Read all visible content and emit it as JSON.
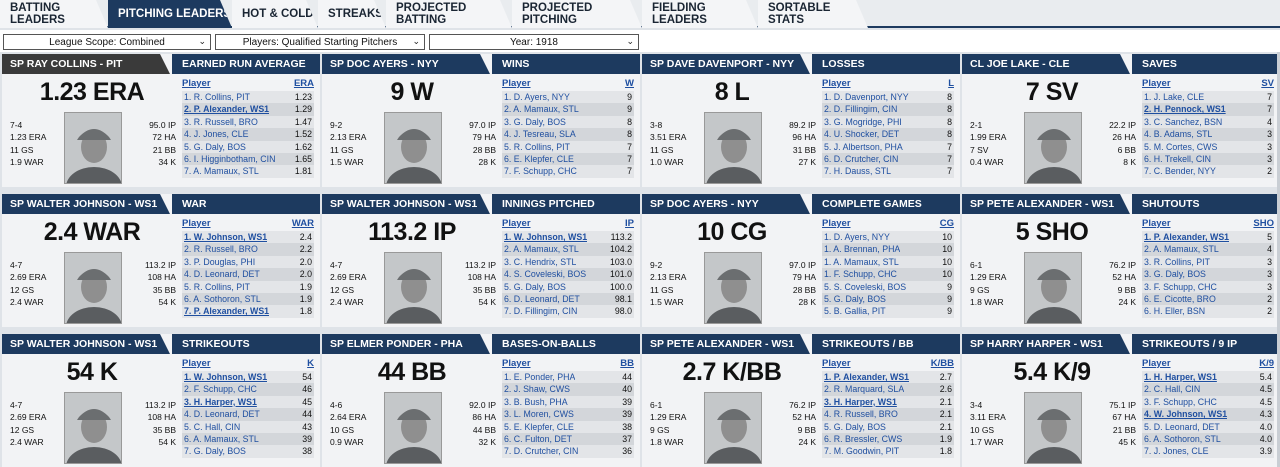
{
  "tabs": [
    "BATTING LEADERS",
    "PITCHING LEADERS",
    "HOT & COLD",
    "STREAKS",
    "PROJECTED BATTING",
    "PROJECTED PITCHING",
    "FIELDING LEADERS",
    "SORTABLE STATS"
  ],
  "active_tab": "PITCHING LEADERS",
  "filters": {
    "league_scope": "League Scope: Combined",
    "players": "Players: Qualified Starting Pitchers",
    "year": "Year: 1918"
  },
  "panels": [
    {
      "player": "SP RAY COLLINS - PIT",
      "category": "EARNED RUN AVERAGE",
      "big": "1.23 ERA",
      "left": [
        "7-4",
        "1.23 ERA",
        "11 GS",
        "1.9 WAR"
      ],
      "right": [
        "95.0 IP",
        "72 HA",
        "21 BB",
        "34 K"
      ],
      "col": "ERA",
      "rows": [
        [
          "1. R. Collins, PIT",
          "1.23"
        ],
        [
          "2. P. Alexander, WS1",
          "1.29"
        ],
        [
          "3. R. Russell, BRO",
          "1.47"
        ],
        [
          "4. J. Jones, CLE",
          "1.52"
        ],
        [
          "5. G. Daly, BOS",
          "1.62"
        ],
        [
          "6. I. Higginbotham, CIN",
          "1.65"
        ],
        [
          "7. A. Mamaux, STL",
          "1.81"
        ]
      ]
    },
    {
      "player": "SP DOC AYERS - NYY",
      "category": "WINS",
      "big": "9 W",
      "left": [
        "9-2",
        "2.13 ERA",
        "11 GS",
        "1.5 WAR"
      ],
      "right": [
        "97.0 IP",
        "79 HA",
        "28 BB",
        "28 K"
      ],
      "col": "W",
      "rows": [
        [
          "1. D. Ayers, NYY",
          "9"
        ],
        [
          "2. A. Mamaux, STL",
          "9"
        ],
        [
          "3. G. Daly, BOS",
          "8"
        ],
        [
          "4. J. Tesreau, SLA",
          "8"
        ],
        [
          "5. R. Collins, PIT",
          "7"
        ],
        [
          "6. E. Klepfer, CLE",
          "7"
        ],
        [
          "7. F. Schupp, CHC",
          "7"
        ]
      ]
    },
    {
      "player": "SP DAVE DAVENPORT - NYY",
      "category": "LOSSES",
      "big": "8 L",
      "left": [
        "3-8",
        "3.51 ERA",
        "11 GS",
        "1.0 WAR"
      ],
      "right": [
        "89.2 IP",
        "96 HA",
        "31 BB",
        "27 K"
      ],
      "col": "L",
      "rows": [
        [
          "1. D. Davenport, NYY",
          "8"
        ],
        [
          "2. D. Fillingim, CIN",
          "8"
        ],
        [
          "3. G. Mogridge, PHI",
          "8"
        ],
        [
          "4. U. Shocker, DET",
          "8"
        ],
        [
          "5. J. Albertson, PHA",
          "7"
        ],
        [
          "6. D. Crutcher, CIN",
          "7"
        ],
        [
          "7. H. Dauss, STL",
          "7"
        ]
      ]
    },
    {
      "player": "CL JOE LAKE - CLE",
      "category": "SAVES",
      "big": "7 SV",
      "left": [
        "2-1",
        "1.99 ERA",
        "7 SV",
        "0.4 WAR"
      ],
      "right": [
        "22.2 IP",
        "26 HA",
        "6 BB",
        "8 K"
      ],
      "col": "SV",
      "rows": [
        [
          "1. J. Lake, CLE",
          "7"
        ],
        [
          "2. H. Pennock, WS1",
          "7"
        ],
        [
          "3. C. Sanchez, BSN",
          "4"
        ],
        [
          "4. B. Adams, STL",
          "3"
        ],
        [
          "5. M. Cortes, CWS",
          "3"
        ],
        [
          "6. H. Trekell, CIN",
          "3"
        ],
        [
          "7. C. Bender, NYY",
          "2"
        ]
      ]
    },
    {
      "player": "SP WALTER JOHNSON - WS1",
      "category": "WAR",
      "big": "2.4 WAR",
      "left": [
        "4-7",
        "2.69 ERA",
        "12 GS",
        "2.4 WAR"
      ],
      "right": [
        "113.2 IP",
        "108 HA",
        "35 BB",
        "54 K"
      ],
      "col": "WAR",
      "rows": [
        [
          "1. W. Johnson, WS1",
          "2.4"
        ],
        [
          "2. R. Russell, BRO",
          "2.2"
        ],
        [
          "3. P. Douglas, PHI",
          "2.0"
        ],
        [
          "4. D. Leonard, DET",
          "2.0"
        ],
        [
          "5. R. Collins, PIT",
          "1.9"
        ],
        [
          "6. A. Sothoron, STL",
          "1.9"
        ],
        [
          "7. P. Alexander, WS1",
          "1.8"
        ]
      ]
    },
    {
      "player": "SP WALTER JOHNSON - WS1",
      "category": "INNINGS PITCHED",
      "big": "113.2 IP",
      "left": [
        "4-7",
        "2.69 ERA",
        "12 GS",
        "2.4 WAR"
      ],
      "right": [
        "113.2 IP",
        "108 HA",
        "35 BB",
        "54 K"
      ],
      "col": "IP",
      "rows": [
        [
          "1. W. Johnson, WS1",
          "113.2"
        ],
        [
          "2. A. Mamaux, STL",
          "104.2"
        ],
        [
          "3. C. Hendrix, STL",
          "103.0"
        ],
        [
          "4. S. Coveleski, BOS",
          "101.0"
        ],
        [
          "5. G. Daly, BOS",
          "100.0"
        ],
        [
          "6. D. Leonard, DET",
          "98.1"
        ],
        [
          "7. D. Fillingim, CIN",
          "98.0"
        ]
      ]
    },
    {
      "player": "SP DOC AYERS - NYY",
      "category": "COMPLETE GAMES",
      "big": "10 CG",
      "left": [
        "9-2",
        "2.13 ERA",
        "11 GS",
        "1.5 WAR"
      ],
      "right": [
        "97.0 IP",
        "79 HA",
        "28 BB",
        "28 K"
      ],
      "col": "CG",
      "rows": [
        [
          "1. D. Ayers, NYY",
          "10"
        ],
        [
          "1. A. Brennan, PHA",
          "10"
        ],
        [
          "1. A. Mamaux, STL",
          "10"
        ],
        [
          "1. F. Schupp, CHC",
          "10"
        ],
        [
          "5. S. Coveleski, BOS",
          "9"
        ],
        [
          "5. G. Daly, BOS",
          "9"
        ],
        [
          "5. B. Gallia, PIT",
          "9"
        ]
      ]
    },
    {
      "player": "SP PETE ALEXANDER - WS1",
      "category": "SHUTOUTS",
      "big": "5 SHO",
      "left": [
        "6-1",
        "1.29 ERA",
        "9 GS",
        "1.8 WAR"
      ],
      "right": [
        "76.2 IP",
        "52 HA",
        "9 BB",
        "24 K"
      ],
      "col": "SHO",
      "rows": [
        [
          "1. P. Alexander, WS1",
          "5"
        ],
        [
          "2. A. Mamaux, STL",
          "4"
        ],
        [
          "3. R. Collins, PIT",
          "3"
        ],
        [
          "3. G. Daly, BOS",
          "3"
        ],
        [
          "3. F. Schupp, CHC",
          "3"
        ],
        [
          "6. E. Cicotte, BRO",
          "2"
        ],
        [
          "6. H. Eller, BSN",
          "2"
        ]
      ]
    },
    {
      "player": "SP WALTER JOHNSON - WS1",
      "category": "STRIKEOUTS",
      "big": "54 K",
      "left": [
        "4-7",
        "2.69 ERA",
        "12 GS",
        "2.4 WAR"
      ],
      "right": [
        "113.2 IP",
        "108 HA",
        "35 BB",
        "54 K"
      ],
      "col": "K",
      "rows": [
        [
          "1. W. Johnson, WS1",
          "54"
        ],
        [
          "2. F. Schupp, CHC",
          "46"
        ],
        [
          "3. H. Harper, WS1",
          "45"
        ],
        [
          "4. D. Leonard, DET",
          "44"
        ],
        [
          "5. C. Hall, CIN",
          "43"
        ],
        [
          "6. A. Mamaux, STL",
          "39"
        ],
        [
          "7. G. Daly, BOS",
          "38"
        ]
      ]
    },
    {
      "player": "SP ELMER PONDER - PHA",
      "category": "BASES-ON-BALLS",
      "big": "44 BB",
      "left": [
        "4-6",
        "2.64 ERA",
        "10 GS",
        "0.9 WAR"
      ],
      "right": [
        "92.0 IP",
        "86 HA",
        "44 BB",
        "32 K"
      ],
      "col": "BB",
      "rows": [
        [
          "1. E. Ponder, PHA",
          "44"
        ],
        [
          "2. J. Shaw, CWS",
          "40"
        ],
        [
          "3. B. Bush, PHA",
          "39"
        ],
        [
          "3. L. Moren, CWS",
          "39"
        ],
        [
          "5. E. Klepfer, CLE",
          "38"
        ],
        [
          "6. C. Fulton, DET",
          "37"
        ],
        [
          "7. D. Crutcher, CIN",
          "36"
        ]
      ]
    },
    {
      "player": "SP PETE ALEXANDER - WS1",
      "category": "STRIKEOUTS / BB",
      "big": "2.7 K/BB",
      "left": [
        "6-1",
        "1.29 ERA",
        "9 GS",
        "1.8 WAR"
      ],
      "right": [
        "76.2 IP",
        "52 HA",
        "9 BB",
        "24 K"
      ],
      "col": "K/BB",
      "rows": [
        [
          "1. P. Alexander, WS1",
          "2.7"
        ],
        [
          "2. R. Marquard, SLA",
          "2.6"
        ],
        [
          "3. H. Harper, WS1",
          "2.1"
        ],
        [
          "4. R. Russell, BRO",
          "2.1"
        ],
        [
          "5. G. Daly, BOS",
          "2.1"
        ],
        [
          "6. R. Bressler, CWS",
          "1.9"
        ],
        [
          "7. M. Goodwin, PIT",
          "1.8"
        ]
      ]
    },
    {
      "player": "SP HARRY HARPER - WS1",
      "category": "STRIKEOUTS / 9 IP",
      "big": "5.4 K/9",
      "left": [
        "3-4",
        "3.11 ERA",
        "10 GS",
        "1.7 WAR"
      ],
      "right": [
        "75.1 IP",
        "67 HA",
        "21 BB",
        "45 K"
      ],
      "col": "K/9",
      "rows": [
        [
          "1. H. Harper, WS1",
          "5.4"
        ],
        [
          "2. C. Hall, CIN",
          "4.5"
        ],
        [
          "3. F. Schupp, CHC",
          "4.5"
        ],
        [
          "4. W. Johnson, WS1",
          "4.3"
        ],
        [
          "5. D. Leonard, DET",
          "4.0"
        ],
        [
          "6. A. Sothoron, STL",
          "4.0"
        ],
        [
          "7. J. Jones, CLE",
          "3.9"
        ]
      ]
    }
  ],
  "highlight_team": "WS1"
}
